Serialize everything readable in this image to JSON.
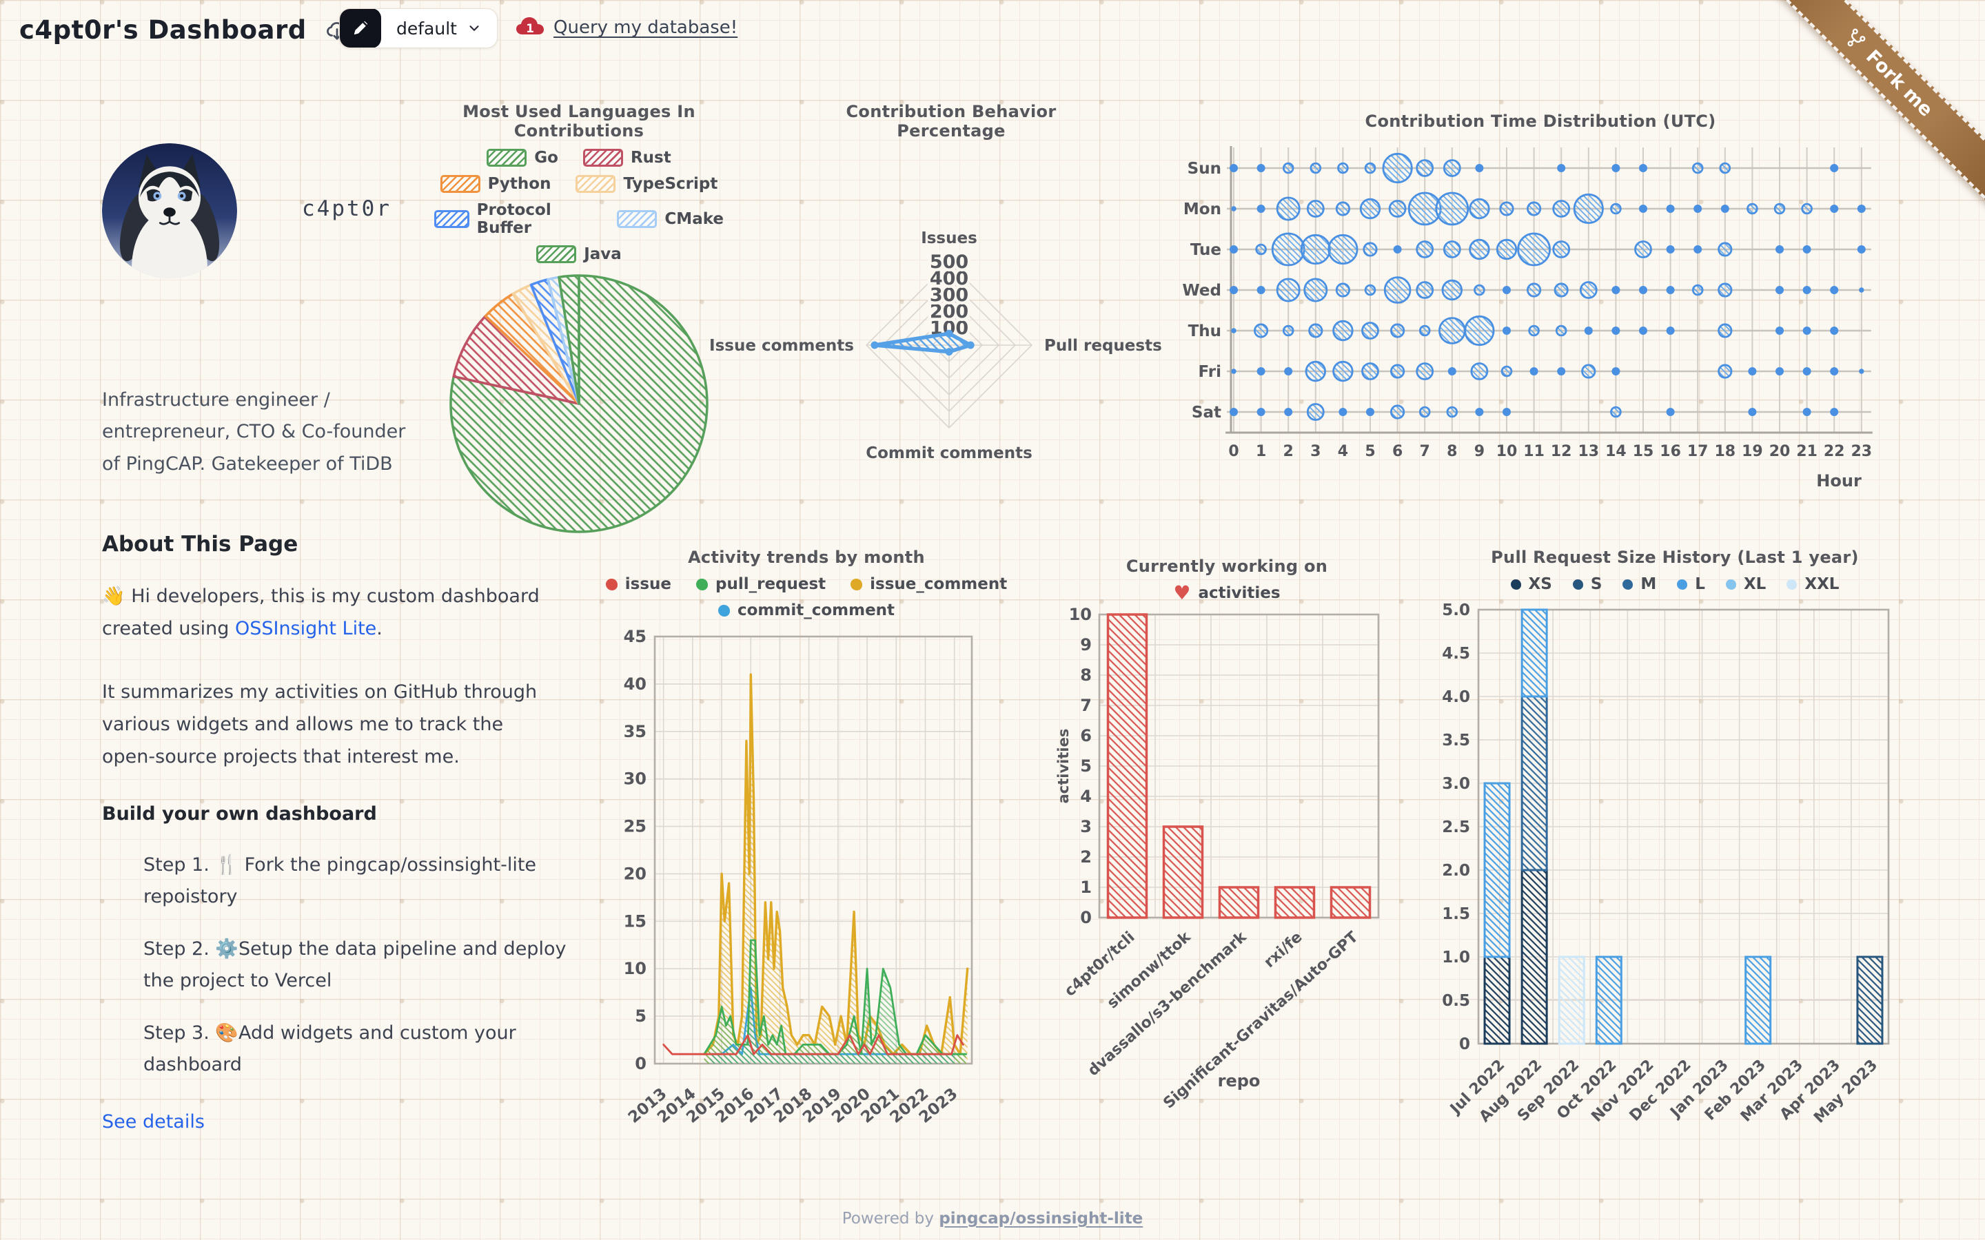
{
  "header": {
    "title": "c4pt0r's Dashboard",
    "preset_label": "default",
    "query_link": "Query my database!",
    "fork_label": "Fork me"
  },
  "profile": {
    "username": "c4pt0r",
    "bio": "Infrastructure engineer / entrepreneur, CTO & Co-founder of PingCAP. Gatekeeper of TiDB"
  },
  "about": {
    "heading": "About This Page",
    "p1_prefix": "👋 Hi developers, this is my custom dashboard created using ",
    "p1_link": "OSSInsight Lite",
    "p1_suffix": ".",
    "p2": "It summarizes my activities on GitHub through various widgets and allows me to track the open-source projects that interest me.",
    "build_heading": "Build your own dashboard",
    "steps": [
      "Step 1.  🍴 Fork the pingcap/ossinsight-lite repoistory",
      "Step 2. ⚙️Setup the data pipeline and deploy the project to Vercel",
      "Step 3. 🎨Add widgets and custom your dashboard"
    ],
    "see_details": "See details"
  },
  "footer": {
    "prefix": "Powered by ",
    "link": "pingcap/ossinsight-lite"
  },
  "colors": {
    "link_blue": "#2563eb",
    "ribbon_brown": "#a97c4e",
    "tidb_red": "#c5303e",
    "edit_button_bg": "#10131c",
    "bubble_blue": "#4a90e2",
    "bar_red": "#d9534f"
  },
  "chart_data": [
    {
      "id": "languages",
      "type": "pie",
      "title": "Most Used Languages In Contributions",
      "legend": [
        {
          "label": "Go",
          "color": "#57a05c"
        },
        {
          "label": "Rust",
          "color": "#c05064"
        },
        {
          "label": "Python",
          "color": "#f0923e"
        },
        {
          "label": "TypeScript",
          "color": "#f6d19c"
        },
        {
          "label": "Protocol Buffer",
          "color": "#4f8df5"
        },
        {
          "label": "CMake",
          "color": "#a6cdf6"
        },
        {
          "label": "Java",
          "color": "#57a05c"
        }
      ],
      "values": [
        {
          "label": "Go",
          "value": 78.4
        },
        {
          "label": "Rust",
          "value": 8.6
        },
        {
          "label": "Python",
          "value": 4.4
        },
        {
          "label": "TypeScript",
          "value": 2.5
        },
        {
          "label": "Protocol Buffer",
          "value": 2.2
        },
        {
          "label": "CMake",
          "value": 1.4
        },
        {
          "label": "Java",
          "value": 2.5
        }
      ]
    },
    {
      "id": "behavior",
      "type": "radar",
      "title": "Contribution Behavior Percentage",
      "axes": [
        "Issues",
        "Pull requests",
        "Commit comments",
        "Issue comments"
      ],
      "max": 500,
      "ticks": [
        100,
        200,
        300,
        400,
        500
      ],
      "values": [
        70,
        130,
        40,
        450
      ],
      "color": "#55a0e6"
    },
    {
      "id": "time-dist",
      "type": "bubble",
      "title": "Contribution Time Distribution (UTC)",
      "xlabel": "Hour",
      "days": [
        "Sun",
        "Mon",
        "Tue",
        "Wed",
        "Thu",
        "Fri",
        "Sat"
      ],
      "hours": [
        0,
        1,
        2,
        3,
        4,
        5,
        6,
        7,
        8,
        9,
        10,
        11,
        12,
        13,
        14,
        15,
        16,
        17,
        18,
        19,
        20,
        21,
        22,
        23
      ],
      "sizes": [
        [
          2,
          2,
          3,
          3,
          3,
          3,
          9,
          5,
          5,
          2,
          0,
          0,
          2,
          0,
          2,
          2,
          0,
          3,
          3,
          0,
          0,
          0,
          2,
          0
        ],
        [
          1,
          2,
          7,
          5,
          4,
          6,
          5,
          10,
          10,
          6,
          4,
          4,
          5,
          9,
          3,
          2,
          2,
          2,
          2,
          3,
          3,
          3,
          2,
          2
        ],
        [
          2,
          3,
          10,
          9,
          9,
          4,
          2,
          5,
          5,
          6,
          6,
          10,
          5,
          0,
          0,
          5,
          2,
          2,
          4,
          0,
          2,
          2,
          0,
          2
        ],
        [
          2,
          2,
          7,
          7,
          4,
          3,
          8,
          5,
          6,
          3,
          2,
          4,
          4,
          5,
          2,
          2,
          2,
          3,
          4,
          0,
          2,
          2,
          2,
          1
        ],
        [
          1,
          4,
          3,
          4,
          6,
          5,
          4,
          3,
          8,
          9,
          2,
          3,
          3,
          2,
          2,
          2,
          2,
          0,
          4,
          0,
          2,
          2,
          2,
          0
        ],
        [
          1,
          2,
          2,
          6,
          6,
          5,
          4,
          5,
          2,
          5,
          3,
          2,
          2,
          4,
          2,
          0,
          0,
          0,
          4,
          2,
          2,
          2,
          2,
          1
        ],
        [
          2,
          2,
          2,
          5,
          2,
          2,
          4,
          3,
          3,
          2,
          2,
          0,
          0,
          0,
          3,
          0,
          2,
          0,
          0,
          2,
          0,
          2,
          2,
          0
        ]
      ],
      "color": "#4a90e2"
    },
    {
      "id": "activity",
      "type": "line",
      "title": "Activity trends by month",
      "ylim": [
        0,
        45
      ],
      "yticks": [
        0,
        5,
        10,
        15,
        20,
        25,
        30,
        35,
        40,
        45
      ],
      "xticks": [
        "2013",
        "2014",
        "2015",
        "2016",
        "2017",
        "2018",
        "2019",
        "2020",
        "2021",
        "2022",
        "2023"
      ],
      "series": [
        {
          "name": "issue",
          "color": "#d94f46",
          "area": false,
          "points": [
            [
              2013.0,
              2
            ],
            [
              2013.3,
              1
            ],
            [
              2014.5,
              1
            ],
            [
              2015.0,
              1
            ],
            [
              2015.5,
              1
            ],
            [
              2015.9,
              3
            ],
            [
              2016.1,
              1
            ],
            [
              2016.4,
              2
            ],
            [
              2016.7,
              1
            ],
            [
              2017.0,
              1
            ],
            [
              2017.5,
              1
            ],
            [
              2018.0,
              1
            ],
            [
              2018.5,
              1
            ],
            [
              2019.0,
              1
            ],
            [
              2019.4,
              3
            ],
            [
              2019.7,
              1
            ],
            [
              2019.9,
              2
            ],
            [
              2020.1,
              1
            ],
            [
              2020.4,
              3
            ],
            [
              2020.7,
              1
            ],
            [
              2021.0,
              1
            ],
            [
              2021.5,
              1
            ],
            [
              2022.0,
              1
            ],
            [
              2022.5,
              1
            ],
            [
              2022.9,
              1
            ],
            [
              2023.1,
              3
            ],
            [
              2023.3,
              2
            ]
          ]
        },
        {
          "name": "pull_request",
          "color": "#3fae58",
          "area": true,
          "points": [
            [
              2014.4,
              1
            ],
            [
              2014.8,
              3
            ],
            [
              2015.0,
              6
            ],
            [
              2015.15,
              4
            ],
            [
              2015.3,
              5
            ],
            [
              2015.5,
              2
            ],
            [
              2015.7,
              2
            ],
            [
              2015.9,
              2
            ],
            [
              2016.0,
              13
            ],
            [
              2016.15,
              13
            ],
            [
              2016.3,
              3
            ],
            [
              2016.45,
              5
            ],
            [
              2016.6,
              2
            ],
            [
              2016.75,
              3
            ],
            [
              2016.9,
              2
            ],
            [
              2017.05,
              4
            ],
            [
              2017.2,
              1
            ],
            [
              2017.5,
              1
            ],
            [
              2017.8,
              2
            ],
            [
              2018.1,
              2
            ],
            [
              2018.4,
              2
            ],
            [
              2018.7,
              1
            ],
            [
              2019.0,
              1
            ],
            [
              2019.3,
              2
            ],
            [
              2019.55,
              5
            ],
            [
              2019.8,
              1
            ],
            [
              2020.0,
              10
            ],
            [
              2020.15,
              2
            ],
            [
              2020.3,
              3
            ],
            [
              2020.55,
              10
            ],
            [
              2020.8,
              8
            ],
            [
              2021.1,
              2
            ],
            [
              2021.35,
              1
            ],
            [
              2021.7,
              1
            ],
            [
              2022.0,
              3
            ],
            [
              2022.3,
              2
            ],
            [
              2022.6,
              1
            ],
            [
              2022.9,
              1
            ],
            [
              2023.1,
              1
            ],
            [
              2023.4,
              1
            ]
          ]
        },
        {
          "name": "issue_comment",
          "color": "#deaa26",
          "area": true,
          "points": [
            [
              2014.4,
              1
            ],
            [
              2014.7,
              2
            ],
            [
              2014.9,
              5
            ],
            [
              2015.0,
              20
            ],
            [
              2015.1,
              15
            ],
            [
              2015.25,
              19
            ],
            [
              2015.4,
              3
            ],
            [
              2015.55,
              2
            ],
            [
              2015.7,
              5
            ],
            [
              2015.85,
              34
            ],
            [
              2015.95,
              20
            ],
            [
              2016.0,
              41
            ],
            [
              2016.1,
              28
            ],
            [
              2016.2,
              2
            ],
            [
              2016.35,
              3
            ],
            [
              2016.5,
              17
            ],
            [
              2016.6,
              11
            ],
            [
              2016.7,
              17
            ],
            [
              2016.8,
              10
            ],
            [
              2016.9,
              16
            ],
            [
              2017.0,
              14
            ],
            [
              2017.1,
              8
            ],
            [
              2017.25,
              6
            ],
            [
              2017.4,
              3
            ],
            [
              2017.6,
              2
            ],
            [
              2017.8,
              3
            ],
            [
              2018.0,
              3
            ],
            [
              2018.2,
              2
            ],
            [
              2018.45,
              6
            ],
            [
              2018.7,
              5
            ],
            [
              2018.9,
              2
            ],
            [
              2019.1,
              5
            ],
            [
              2019.3,
              2
            ],
            [
              2019.55,
              16
            ],
            [
              2019.7,
              3
            ],
            [
              2019.9,
              2
            ],
            [
              2020.1,
              5
            ],
            [
              2020.35,
              4
            ],
            [
              2020.6,
              2
            ],
            [
              2020.9,
              1
            ],
            [
              2021.2,
              2
            ],
            [
              2021.5,
              1
            ],
            [
              2021.8,
              1
            ],
            [
              2022.05,
              4
            ],
            [
              2022.3,
              2
            ],
            [
              2022.55,
              1
            ],
            [
              2022.85,
              7
            ],
            [
              2023.0,
              2
            ],
            [
              2023.2,
              1
            ],
            [
              2023.45,
              10
            ]
          ]
        },
        {
          "name": "commit_comment",
          "color": "#3fa3dc",
          "area": true,
          "points": [
            [
              2014.6,
              1
            ],
            [
              2015.0,
              1
            ],
            [
              2015.4,
              2
            ],
            [
              2015.7,
              1
            ],
            [
              2016.0,
              8
            ],
            [
              2016.15,
              3
            ],
            [
              2016.3,
              1
            ],
            [
              2017.0,
              1
            ],
            [
              2018.0,
              1
            ],
            [
              2019.0,
              1
            ],
            [
              2020.0,
              1
            ],
            [
              2021.0,
              1
            ],
            [
              2022.0,
              1
            ],
            [
              2023.0,
              1
            ]
          ]
        }
      ]
    },
    {
      "id": "working",
      "type": "bar",
      "title": "Currently working on",
      "legend_label": "activities",
      "ylabel": "activities",
      "xlabel": "repo",
      "color": "#d9534f",
      "ylim": [
        0,
        10
      ],
      "yticks": [
        0,
        1,
        2,
        3,
        4,
        5,
        6,
        7,
        8,
        9,
        10
      ],
      "categories": [
        "c4pt0r/tcli",
        "simonw/ttok",
        "dvassallo/s3-benchmark",
        "rxi/fe",
        "Significant-Gravitas/Auto-GPT"
      ],
      "values": [
        10,
        3,
        1,
        1,
        1
      ]
    },
    {
      "id": "pr-size",
      "type": "stacked-bar",
      "title": "Pull Request Size History (Last 1 year)",
      "ylim": [
        0,
        5
      ],
      "sizes": [
        "XS",
        "S",
        "M",
        "L",
        "XL",
        "XXL"
      ],
      "size_colors": {
        "XS": "#1c3d5c",
        "S": "#27567f",
        "M": "#31699b",
        "L": "#4a9fe3",
        "XL": "#85c4ef",
        "XXL": "#cde7f8"
      },
      "months": [
        "Jul 2022",
        "Aug 2022",
        "Sep 2022",
        "Oct 2022",
        "Nov 2022",
        "Dec 2022",
        "Jan 2023",
        "Feb 2023",
        "Mar 2023",
        "Apr 2023",
        "May 2023"
      ],
      "stacks": [
        [
          [
            "XS",
            1
          ],
          [
            "L",
            2
          ]
        ],
        [
          [
            "XS",
            2
          ],
          [
            "M",
            2
          ],
          [
            "L",
            1
          ]
        ],
        [
          [
            "XXL",
            1
          ]
        ],
        [
          [
            "L",
            1
          ]
        ],
        [],
        [],
        [],
        [
          [
            "L",
            1
          ]
        ],
        [],
        [],
        [
          [
            "S",
            1
          ]
        ]
      ]
    }
  ]
}
